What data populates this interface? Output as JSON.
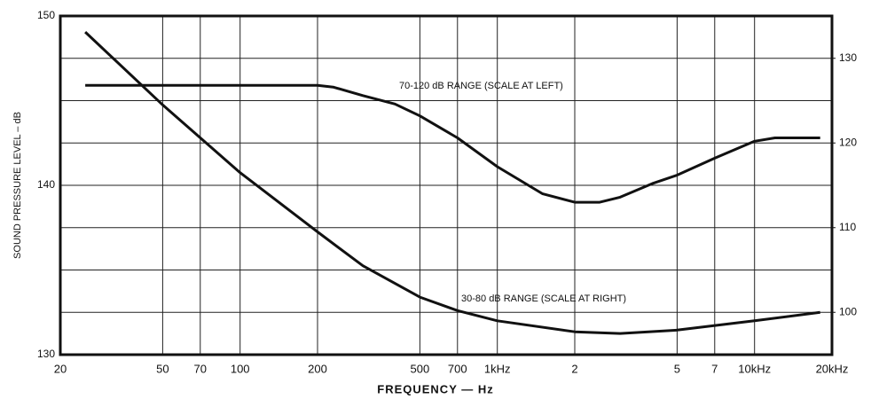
{
  "chart_data": {
    "type": "line",
    "xlabel": "FREQUENCY — Hz",
    "ylabel": "SOUND PRESSURE LEVEL – dB",
    "xscale": "log",
    "xlim": [
      20,
      20000
    ],
    "xticks": [
      20,
      50,
      70,
      100,
      200,
      500,
      700,
      {
        "value": 1000,
        "label": "1kHz"
      },
      {
        "value": 2000,
        "label": "2"
      },
      {
        "value": 5000,
        "label": "5"
      },
      {
        "value": 7000,
        "label": "7"
      },
      {
        "value": 10000,
        "label": "10kHz"
      },
      {
        "value": 20000,
        "label": "20kHz"
      }
    ],
    "ylim": [
      130,
      150
    ],
    "yticks": [
      130,
      140,
      150
    ],
    "y2lim": [
      95,
      135
    ],
    "y2ticks": [
      100,
      110,
      120,
      130
    ],
    "y_grid": [
      130,
      132.5,
      135,
      137.5,
      140,
      142.5,
      145,
      147.5,
      150
    ],
    "grid": true,
    "series": [
      {
        "name": "70-120 dB RANGE (SCALE AT LEFT)",
        "color": "#111111",
        "axis": "y",
        "x": [
          25,
          50,
          100,
          200,
          230,
          300,
          400,
          500,
          700,
          1000,
          1500,
          2000,
          2500,
          3000,
          4000,
          5000,
          7000,
          10000,
          12000,
          18000
        ],
        "values": [
          145.9,
          145.9,
          145.9,
          145.9,
          145.8,
          145.3,
          144.8,
          144.1,
          142.8,
          141.1,
          139.5,
          139.0,
          139.0,
          139.3,
          140.1,
          140.6,
          141.6,
          142.6,
          142.8,
          142.8
        ]
      },
      {
        "name": "30-80 dB RANGE (SCALE AT RIGHT)",
        "color": "#111111",
        "axis": "y2",
        "x": [
          25,
          50,
          100,
          200,
          300,
          500,
          700,
          1000,
          2000,
          3000,
          5000,
          10000,
          18000
        ],
        "values": [
          133.1,
          124.5,
          116.5,
          109.5,
          105.5,
          101.8,
          100.2,
          99.0,
          97.7,
          97.5,
          97.9,
          99.0,
          100.0
        ]
      }
    ]
  }
}
